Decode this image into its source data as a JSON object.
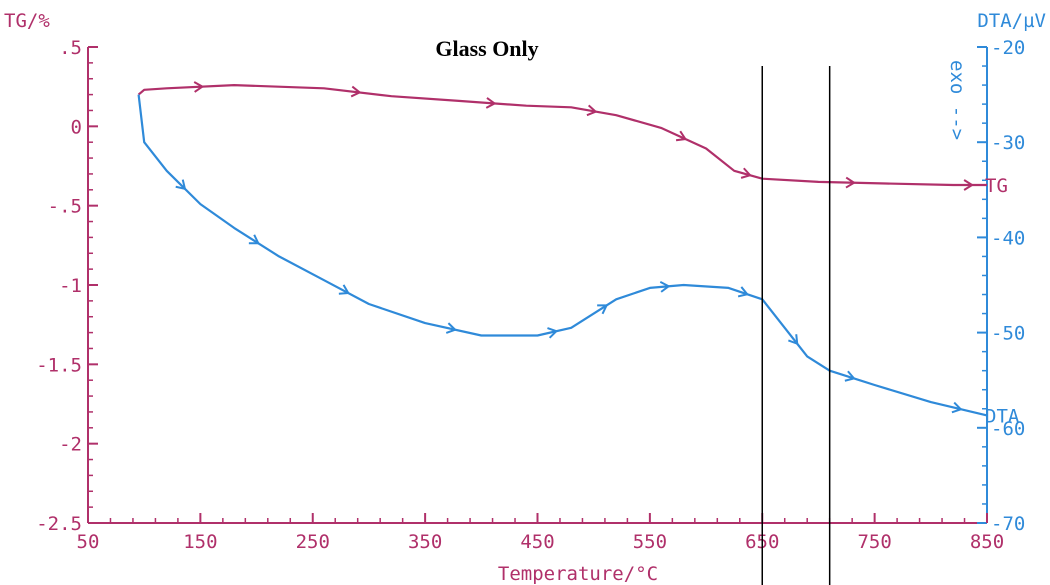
{
  "colors": {
    "tg": "#b0306a",
    "dta": "#2f8ad9",
    "marker": "#000000"
  },
  "chart_data": {
    "type": "line",
    "title": "Glass Only",
    "xlabel": "Temperature/°C",
    "xlim": [
      50,
      850
    ],
    "xticks": [
      50,
      150,
      250,
      350,
      450,
      550,
      650,
      750,
      850
    ],
    "x_tick_labels": [
      "50",
      "150",
      "250",
      "350",
      "450",
      "550",
      "650",
      "750",
      "850"
    ],
    "left_axis": {
      "label": "TG/%",
      "ylim": [
        -2.5,
        0.5
      ],
      "ticks": [
        0.5,
        0,
        -0.5,
        -1,
        -1.5,
        -2,
        -2.5
      ],
      "tick_labels": [
        ".5",
        "0",
        "-.5",
        "-1",
        "-1.5",
        "-2",
        "-2.5"
      ]
    },
    "right_axis": {
      "label": "DTA/µV",
      "ylim": [
        -70,
        -20
      ],
      "ticks": [
        -20,
        -30,
        -40,
        -50,
        -60,
        -70
      ],
      "tick_labels": [
        "-20",
        "-30",
        "-40",
        "-50",
        "-60",
        "-70"
      ],
      "annotation": "exo -->"
    },
    "series": [
      {
        "name": "TG",
        "axis": "left",
        "x": [
          95,
          100,
          120,
          180,
          260,
          320,
          380,
          440,
          480,
          520,
          560,
          600,
          625,
          650,
          700,
          760,
          820,
          850
        ],
        "y": [
          0.2,
          0.23,
          0.24,
          0.26,
          0.24,
          0.19,
          0.16,
          0.13,
          0.12,
          0.07,
          -0.01,
          -0.14,
          -0.28,
          -0.33,
          -0.35,
          -0.36,
          -0.37,
          -0.37
        ]
      },
      {
        "name": "DTA",
        "axis": "right",
        "x": [
          95,
          100,
          120,
          150,
          180,
          220,
          260,
          300,
          350,
          400,
          450,
          480,
          500,
          520,
          550,
          580,
          620,
          650,
          670,
          690,
          710,
          750,
          800,
          850
        ],
        "y": [
          -25,
          -30,
          -33,
          -36.5,
          -39,
          -42,
          -44.5,
          -47,
          -49,
          -50.3,
          -50.3,
          -49.5,
          -48,
          -46.5,
          -45.3,
          -45,
          -45.3,
          -46.5,
          -49.5,
          -52.5,
          -54,
          -55.5,
          -57.3,
          -58.7
        ]
      }
    ],
    "markers": [
      {
        "x": 650
      },
      {
        "x": 710
      }
    ]
  }
}
